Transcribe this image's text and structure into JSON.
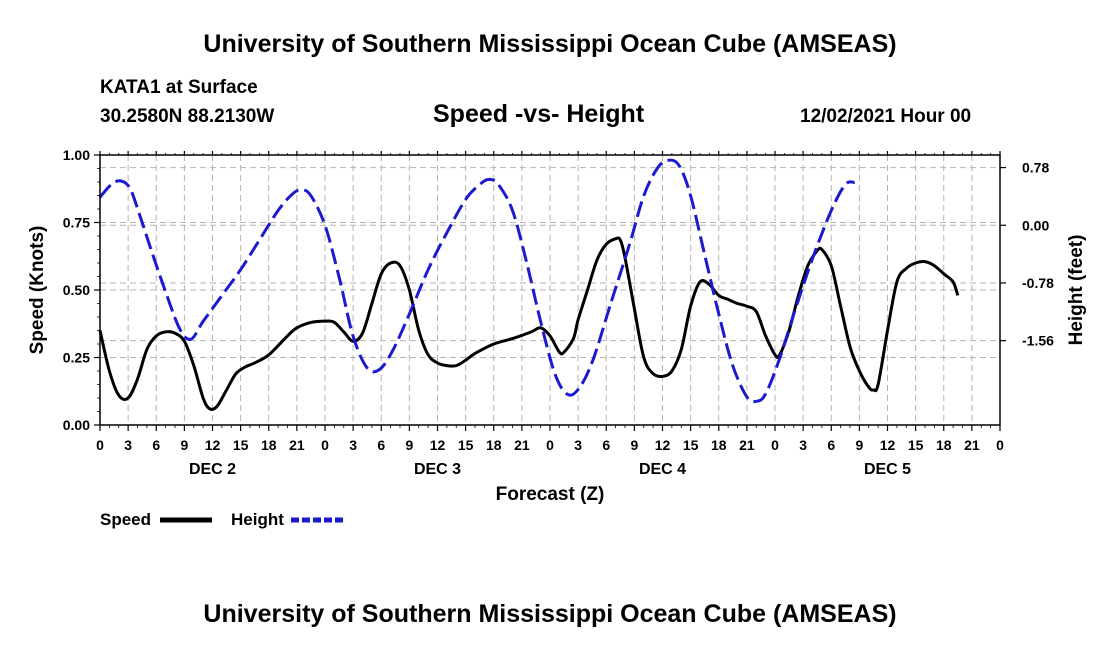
{
  "page": {
    "title_top": "University of Southern Mississippi Ocean Cube (AMSEAS)",
    "title_bottom": "University of Southern Mississippi Ocean Cube (AMSEAS)",
    "station": "KATA1 at Surface",
    "coords": "30.2580N  88.2130W",
    "subtitle": "Speed -vs- Height",
    "datetime": "12/02/2021 Hour 00"
  },
  "colors": {
    "speed": "#000000",
    "height": "#1a1ad0",
    "grid": "#b4b4b4"
  },
  "chart_data": {
    "type": "line",
    "title": "Speed -vs- Height",
    "xlabel": "Forecast (Z)",
    "ylabel_left": "Speed (Knots)",
    "ylabel_right": "Height (feet)",
    "x_range_hours": [
      0,
      96
    ],
    "ylim_left": [
      0,
      1.0
    ],
    "ylim_right": [
      -2.7,
      0.95
    ],
    "x_tick_step_hours": 3,
    "x_tick_labels": [
      "0",
      "3",
      "6",
      "9",
      "12",
      "15",
      "18",
      "21",
      "0",
      "3",
      "6",
      "9",
      "12",
      "15",
      "18",
      "21",
      "0",
      "3",
      "6",
      "9",
      "12",
      "15",
      "18",
      "21",
      "0",
      "3",
      "6",
      "9",
      "12",
      "15",
      "18",
      "21",
      "0"
    ],
    "day_labels": [
      {
        "label": "DEC 2",
        "hour": 12
      },
      {
        "label": "DEC 3",
        "hour": 36
      },
      {
        "label": "DEC 4",
        "hour": 60
      },
      {
        "label": "DEC 5",
        "hour": 84
      }
    ],
    "left_ticks": [
      {
        "value": 0.0,
        "label": "0.00"
      },
      {
        "value": 0.25,
        "label": "0.25"
      },
      {
        "value": 0.5,
        "label": "0.50"
      },
      {
        "value": 0.75,
        "label": "0.75"
      },
      {
        "value": 1.0,
        "label": "1.00"
      }
    ],
    "right_ticks": [
      {
        "value": 0.78,
        "label": "0.78"
      },
      {
        "value": 0.0,
        "label": "0.00"
      },
      {
        "value": -0.78,
        "label": "-0.78"
      },
      {
        "value": -1.56,
        "label": "-1.56"
      }
    ],
    "legend": [
      {
        "name": "Speed",
        "key": "speed"
      },
      {
        "name": "Height",
        "key": "height"
      }
    ],
    "series": [
      {
        "name": "Speed",
        "axis": "left",
        "style": "solid",
        "points": [
          [
            0,
            0.35
          ],
          [
            1,
            0.2
          ],
          [
            2,
            0.11
          ],
          [
            3,
            0.1
          ],
          [
            4,
            0.17
          ],
          [
            5,
            0.28
          ],
          [
            6,
            0.33
          ],
          [
            7,
            0.345
          ],
          [
            8,
            0.34
          ],
          [
            9,
            0.31
          ],
          [
            10,
            0.22
          ],
          [
            11,
            0.1
          ],
          [
            11.7,
            0.06
          ],
          [
            12.5,
            0.07
          ],
          [
            13.5,
            0.13
          ],
          [
            14.5,
            0.19
          ],
          [
            15.5,
            0.215
          ],
          [
            16.5,
            0.23
          ],
          [
            18,
            0.26
          ],
          [
            20,
            0.33
          ],
          [
            21,
            0.36
          ],
          [
            22.5,
            0.38
          ],
          [
            24,
            0.385
          ],
          [
            25,
            0.38
          ],
          [
            26,
            0.345
          ],
          [
            27,
            0.31
          ],
          [
            28,
            0.34
          ],
          [
            29,
            0.45
          ],
          [
            30,
            0.56
          ],
          [
            31,
            0.6
          ],
          [
            32,
            0.59
          ],
          [
            33,
            0.5
          ],
          [
            34,
            0.35
          ],
          [
            35,
            0.26
          ],
          [
            36,
            0.23
          ],
          [
            37,
            0.22
          ],
          [
            38,
            0.22
          ],
          [
            39,
            0.24
          ],
          [
            40,
            0.265
          ],
          [
            42,
            0.3
          ],
          [
            44,
            0.32
          ],
          [
            46,
            0.345
          ],
          [
            47,
            0.36
          ],
          [
            48,
            0.33
          ],
          [
            49,
            0.27
          ],
          [
            49.5,
            0.27
          ],
          [
            50.5,
            0.32
          ],
          [
            51,
            0.39
          ],
          [
            52,
            0.5
          ],
          [
            53,
            0.61
          ],
          [
            54,
            0.67
          ],
          [
            55,
            0.69
          ],
          [
            55.5,
            0.685
          ],
          [
            56,
            0.62
          ],
          [
            57,
            0.43
          ],
          [
            58,
            0.25
          ],
          [
            59,
            0.19
          ],
          [
            60,
            0.18
          ],
          [
            61,
            0.2
          ],
          [
            62,
            0.28
          ],
          [
            63,
            0.44
          ],
          [
            64,
            0.53
          ],
          [
            65,
            0.52
          ],
          [
            66,
            0.48
          ],
          [
            67,
            0.465
          ],
          [
            68,
            0.45
          ],
          [
            69,
            0.44
          ],
          [
            70,
            0.42
          ],
          [
            71,
            0.33
          ],
          [
            72,
            0.26
          ],
          [
            72.5,
            0.26
          ],
          [
            73.5,
            0.35
          ],
          [
            74.5,
            0.48
          ],
          [
            75.5,
            0.59
          ],
          [
            76.5,
            0.645
          ],
          [
            77,
            0.65
          ],
          [
            78,
            0.59
          ],
          [
            79,
            0.44
          ],
          [
            80,
            0.29
          ],
          [
            81,
            0.2
          ],
          [
            82,
            0.14
          ],
          [
            82.5,
            0.13
          ],
          [
            83,
            0.15
          ],
          [
            84,
            0.35
          ],
          [
            85,
            0.53
          ],
          [
            86,
            0.58
          ],
          [
            87,
            0.6
          ],
          [
            88,
            0.605
          ],
          [
            89,
            0.59
          ],
          [
            90,
            0.56
          ],
          [
            91,
            0.53
          ],
          [
            91.5,
            0.48
          ]
        ]
      },
      {
        "name": "Height",
        "axis": "right",
        "style": "dashed",
        "points": [
          [
            0,
            0.38
          ],
          [
            1.2,
            0.55
          ],
          [
            2.2,
            0.6
          ],
          [
            3.2,
            0.5
          ],
          [
            4.2,
            0.15
          ],
          [
            5.5,
            -0.35
          ],
          [
            7,
            -0.9
          ],
          [
            8.5,
            -1.4
          ],
          [
            9.7,
            -1.54
          ],
          [
            11,
            -1.3
          ],
          [
            13,
            -0.95
          ],
          [
            15,
            -0.6
          ],
          [
            17,
            -0.2
          ],
          [
            19,
            0.2
          ],
          [
            20.5,
            0.42
          ],
          [
            21.5,
            0.48
          ],
          [
            22.5,
            0.4
          ],
          [
            24,
            0.0
          ],
          [
            25.5,
            -0.7
          ],
          [
            27,
            -1.5
          ],
          [
            28.5,
            -1.93
          ],
          [
            29.8,
            -1.95
          ],
          [
            31.2,
            -1.7
          ],
          [
            33,
            -1.2
          ],
          [
            35,
            -0.6
          ],
          [
            37,
            -0.1
          ],
          [
            39,
            0.35
          ],
          [
            40.5,
            0.55
          ],
          [
            41.5,
            0.62
          ],
          [
            42.5,
            0.55
          ],
          [
            44,
            0.2
          ],
          [
            45.5,
            -0.5
          ],
          [
            47,
            -1.3
          ],
          [
            48.5,
            -2.0
          ],
          [
            49.8,
            -2.28
          ],
          [
            51,
            -2.22
          ],
          [
            52.5,
            -1.85
          ],
          [
            54.5,
            -1.05
          ],
          [
            56.5,
            -0.25
          ],
          [
            58,
            0.4
          ],
          [
            59.5,
            0.78
          ],
          [
            60.7,
            0.88
          ],
          [
            61.8,
            0.8
          ],
          [
            63,
            0.4
          ],
          [
            64.5,
            -0.4
          ],
          [
            66,
            -1.2
          ],
          [
            67.5,
            -1.9
          ],
          [
            69,
            -2.32
          ],
          [
            70,
            -2.38
          ],
          [
            71,
            -2.28
          ],
          [
            72.5,
            -1.8
          ],
          [
            74,
            -1.2
          ],
          [
            76,
            -0.45
          ],
          [
            78,
            0.2
          ],
          [
            79.5,
            0.55
          ],
          [
            80.5,
            0.58
          ]
        ]
      }
    ]
  }
}
